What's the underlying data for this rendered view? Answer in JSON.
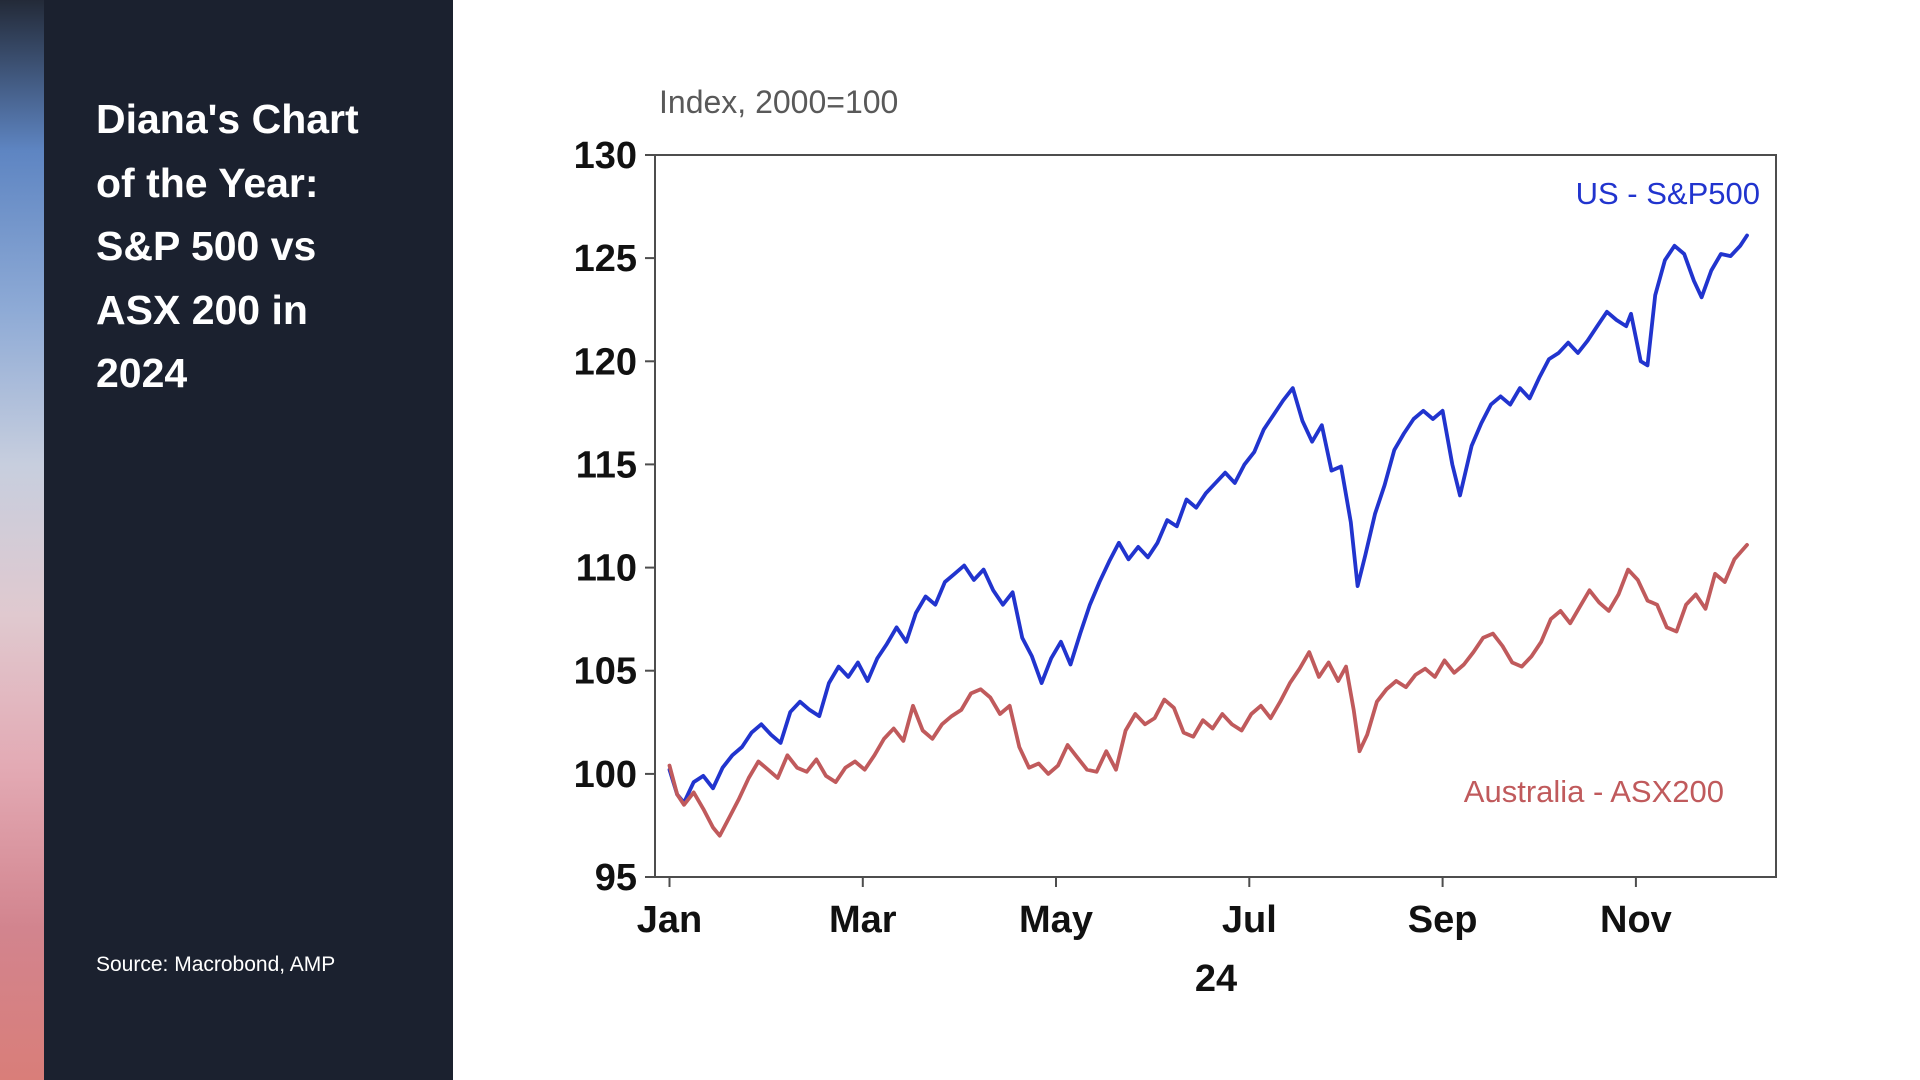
{
  "sidebar": {
    "title": "Diana's Chart of the Year: S&P 500 vs ASX 200 in 2024",
    "source": "Source: Macrobond, AMP"
  },
  "colors": {
    "sidebar_bg": "#1B212F",
    "canvas_bg": "#FFFFFF",
    "axis": "#4D4D4D",
    "tick_label": "#111111",
    "subtitle_text": "#595959",
    "strip_gradient": [
      "#232A38",
      "#5E85C2",
      "#8FABD6",
      "#C7CEDE",
      "#E0C9CF",
      "#E3AAB4",
      "#D2848E",
      "#D97E79"
    ]
  },
  "chart_data": {
    "type": "line",
    "title": "Index, 2000=100",
    "xlabel": "24",
    "ylabel": "",
    "grid": false,
    "legend_position": "inline-labels",
    "ylim": [
      95,
      130
    ],
    "yticks": [
      95,
      100,
      105,
      110,
      115,
      120,
      125,
      130
    ],
    "xlim": [
      -0.15,
      11.45
    ],
    "xticks": [
      {
        "pos": 0,
        "label": "Jan"
      },
      {
        "pos": 2,
        "label": "Mar"
      },
      {
        "pos": 4,
        "label": "May"
      },
      {
        "pos": 6,
        "label": "Jul"
      },
      {
        "pos": 8,
        "label": "Sep"
      },
      {
        "pos": 10,
        "label": "Nov"
      }
    ],
    "x_unit": "months from Jan 2024",
    "series": [
      {
        "name": "US - S&P500",
        "color": "#2134CE",
        "points": [
          [
            0.0,
            100.2
          ],
          [
            0.08,
            99.0
          ],
          [
            0.15,
            98.6
          ],
          [
            0.25,
            99.6
          ],
          [
            0.35,
            99.9
          ],
          [
            0.45,
            99.3
          ],
          [
            0.55,
            100.3
          ],
          [
            0.65,
            100.9
          ],
          [
            0.75,
            101.3
          ],
          [
            0.85,
            102.0
          ],
          [
            0.95,
            102.4
          ],
          [
            1.05,
            101.9
          ],
          [
            1.15,
            101.5
          ],
          [
            1.25,
            103.0
          ],
          [
            1.35,
            103.5
          ],
          [
            1.45,
            103.1
          ],
          [
            1.55,
            102.8
          ],
          [
            1.65,
            104.4
          ],
          [
            1.75,
            105.2
          ],
          [
            1.85,
            104.7
          ],
          [
            1.95,
            105.4
          ],
          [
            2.05,
            104.5
          ],
          [
            2.15,
            105.6
          ],
          [
            2.25,
            106.3
          ],
          [
            2.35,
            107.1
          ],
          [
            2.45,
            106.4
          ],
          [
            2.55,
            107.8
          ],
          [
            2.65,
            108.6
          ],
          [
            2.75,
            108.2
          ],
          [
            2.85,
            109.3
          ],
          [
            2.95,
            109.7
          ],
          [
            3.05,
            110.1
          ],
          [
            3.15,
            109.4
          ],
          [
            3.25,
            109.9
          ],
          [
            3.35,
            108.9
          ],
          [
            3.45,
            108.2
          ],
          [
            3.55,
            108.8
          ],
          [
            3.65,
            106.6
          ],
          [
            3.75,
            105.7
          ],
          [
            3.85,
            104.4
          ],
          [
            3.95,
            105.6
          ],
          [
            4.05,
            106.4
          ],
          [
            4.15,
            105.3
          ],
          [
            4.25,
            106.8
          ],
          [
            4.35,
            108.2
          ],
          [
            4.45,
            109.3
          ],
          [
            4.55,
            110.3
          ],
          [
            4.65,
            111.2
          ],
          [
            4.75,
            110.4
          ],
          [
            4.85,
            111.0
          ],
          [
            4.95,
            110.5
          ],
          [
            5.05,
            111.2
          ],
          [
            5.15,
            112.3
          ],
          [
            5.25,
            112.0
          ],
          [
            5.35,
            113.3
          ],
          [
            5.45,
            112.9
          ],
          [
            5.55,
            113.6
          ],
          [
            5.65,
            114.1
          ],
          [
            5.75,
            114.6
          ],
          [
            5.85,
            114.1
          ],
          [
            5.95,
            115.0
          ],
          [
            6.05,
            115.6
          ],
          [
            6.15,
            116.7
          ],
          [
            6.25,
            117.4
          ],
          [
            6.35,
            118.1
          ],
          [
            6.45,
            118.7
          ],
          [
            6.55,
            117.1
          ],
          [
            6.65,
            116.1
          ],
          [
            6.75,
            116.9
          ],
          [
            6.85,
            114.7
          ],
          [
            6.95,
            114.9
          ],
          [
            7.05,
            112.2
          ],
          [
            7.12,
            109.1
          ],
          [
            7.2,
            110.6
          ],
          [
            7.3,
            112.6
          ],
          [
            7.4,
            114.0
          ],
          [
            7.5,
            115.7
          ],
          [
            7.6,
            116.5
          ],
          [
            7.7,
            117.2
          ],
          [
            7.8,
            117.6
          ],
          [
            7.9,
            117.2
          ],
          [
            8.0,
            117.6
          ],
          [
            8.1,
            115.0
          ],
          [
            8.18,
            113.5
          ],
          [
            8.3,
            115.9
          ],
          [
            8.4,
            117.0
          ],
          [
            8.5,
            117.9
          ],
          [
            8.6,
            118.3
          ],
          [
            8.7,
            117.9
          ],
          [
            8.8,
            118.7
          ],
          [
            8.9,
            118.2
          ],
          [
            9.0,
            119.2
          ],
          [
            9.1,
            120.1
          ],
          [
            9.2,
            120.4
          ],
          [
            9.3,
            120.9
          ],
          [
            9.4,
            120.4
          ],
          [
            9.5,
            121.0
          ],
          [
            9.6,
            121.7
          ],
          [
            9.7,
            122.4
          ],
          [
            9.8,
            122.0
          ],
          [
            9.9,
            121.7
          ],
          [
            9.95,
            122.3
          ],
          [
            10.05,
            120.0
          ],
          [
            10.12,
            119.8
          ],
          [
            10.2,
            123.2
          ],
          [
            10.3,
            124.9
          ],
          [
            10.4,
            125.6
          ],
          [
            10.5,
            125.2
          ],
          [
            10.6,
            123.9
          ],
          [
            10.68,
            123.1
          ],
          [
            10.78,
            124.4
          ],
          [
            10.88,
            125.2
          ],
          [
            10.98,
            125.1
          ],
          [
            11.08,
            125.6
          ],
          [
            11.15,
            126.1
          ]
        ]
      },
      {
        "name": "Australia - ASX200",
        "color": "#C05A5C",
        "points": [
          [
            0.0,
            100.4
          ],
          [
            0.08,
            99.0
          ],
          [
            0.15,
            98.5
          ],
          [
            0.25,
            99.1
          ],
          [
            0.35,
            98.3
          ],
          [
            0.45,
            97.4
          ],
          [
            0.52,
            97.0
          ],
          [
            0.62,
            97.9
          ],
          [
            0.72,
            98.8
          ],
          [
            0.82,
            99.8
          ],
          [
            0.92,
            100.6
          ],
          [
            1.02,
            100.2
          ],
          [
            1.12,
            99.8
          ],
          [
            1.22,
            100.9
          ],
          [
            1.32,
            100.3
          ],
          [
            1.42,
            100.1
          ],
          [
            1.52,
            100.7
          ],
          [
            1.62,
            99.9
          ],
          [
            1.72,
            99.6
          ],
          [
            1.82,
            100.3
          ],
          [
            1.92,
            100.6
          ],
          [
            2.02,
            100.2
          ],
          [
            2.12,
            100.9
          ],
          [
            2.22,
            101.7
          ],
          [
            2.32,
            102.2
          ],
          [
            2.42,
            101.6
          ],
          [
            2.52,
            103.3
          ],
          [
            2.62,
            102.1
          ],
          [
            2.72,
            101.7
          ],
          [
            2.82,
            102.4
          ],
          [
            2.92,
            102.8
          ],
          [
            3.02,
            103.1
          ],
          [
            3.12,
            103.9
          ],
          [
            3.22,
            104.1
          ],
          [
            3.32,
            103.7
          ],
          [
            3.42,
            102.9
          ],
          [
            3.52,
            103.3
          ],
          [
            3.62,
            101.3
          ],
          [
            3.72,
            100.3
          ],
          [
            3.82,
            100.5
          ],
          [
            3.92,
            100.0
          ],
          [
            4.02,
            100.4
          ],
          [
            4.12,
            101.4
          ],
          [
            4.22,
            100.8
          ],
          [
            4.32,
            100.2
          ],
          [
            4.42,
            100.1
          ],
          [
            4.52,
            101.1
          ],
          [
            4.62,
            100.2
          ],
          [
            4.72,
            102.1
          ],
          [
            4.82,
            102.9
          ],
          [
            4.92,
            102.4
          ],
          [
            5.02,
            102.7
          ],
          [
            5.12,
            103.6
          ],
          [
            5.22,
            103.2
          ],
          [
            5.32,
            102.0
          ],
          [
            5.42,
            101.8
          ],
          [
            5.52,
            102.6
          ],
          [
            5.62,
            102.2
          ],
          [
            5.72,
            102.9
          ],
          [
            5.82,
            102.4
          ],
          [
            5.92,
            102.1
          ],
          [
            6.02,
            102.9
          ],
          [
            6.12,
            103.3
          ],
          [
            6.22,
            102.7
          ],
          [
            6.32,
            103.5
          ],
          [
            6.42,
            104.4
          ],
          [
            6.52,
            105.1
          ],
          [
            6.62,
            105.9
          ],
          [
            6.72,
            104.7
          ],
          [
            6.82,
            105.4
          ],
          [
            6.92,
            104.5
          ],
          [
            7.0,
            105.2
          ],
          [
            7.08,
            103.1
          ],
          [
            7.14,
            101.1
          ],
          [
            7.22,
            101.9
          ],
          [
            7.32,
            103.5
          ],
          [
            7.42,
            104.1
          ],
          [
            7.52,
            104.5
          ],
          [
            7.62,
            104.2
          ],
          [
            7.72,
            104.8
          ],
          [
            7.82,
            105.1
          ],
          [
            7.92,
            104.7
          ],
          [
            8.02,
            105.5
          ],
          [
            8.12,
            104.9
          ],
          [
            8.22,
            105.3
          ],
          [
            8.32,
            105.9
          ],
          [
            8.42,
            106.6
          ],
          [
            8.52,
            106.8
          ],
          [
            8.62,
            106.2
          ],
          [
            8.72,
            105.4
          ],
          [
            8.82,
            105.2
          ],
          [
            8.92,
            105.7
          ],
          [
            9.02,
            106.4
          ],
          [
            9.12,
            107.5
          ],
          [
            9.22,
            107.9
          ],
          [
            9.32,
            107.3
          ],
          [
            9.42,
            108.1
          ],
          [
            9.52,
            108.9
          ],
          [
            9.62,
            108.3
          ],
          [
            9.72,
            107.9
          ],
          [
            9.82,
            108.7
          ],
          [
            9.92,
            109.9
          ],
          [
            10.02,
            109.4
          ],
          [
            10.12,
            108.4
          ],
          [
            10.22,
            108.2
          ],
          [
            10.32,
            107.1
          ],
          [
            10.42,
            106.9
          ],
          [
            10.52,
            108.2
          ],
          [
            10.62,
            108.7
          ],
          [
            10.72,
            108.0
          ],
          [
            10.82,
            109.7
          ],
          [
            10.92,
            109.3
          ],
          [
            11.02,
            110.4
          ],
          [
            11.15,
            111.1
          ]
        ]
      }
    ]
  }
}
